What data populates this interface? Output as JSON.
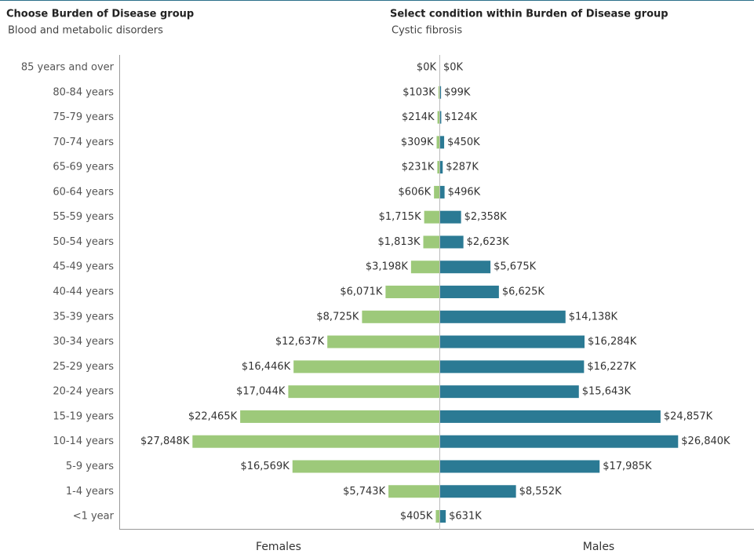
{
  "filters": [
    {
      "label": "Choose Burden of Disease group",
      "value": "Blood and metabolic disorders"
    },
    {
      "label": "Select condition within Burden of Disease group",
      "value": "Cystic fibrosis"
    }
  ],
  "chart_data": {
    "type": "pyramid",
    "categories": [
      "85 years and over",
      "80-84 years",
      "75-79 years",
      "70-74 years",
      "65-69 years",
      "60-64 years",
      "55-59 years",
      "50-54 years",
      "45-49 years",
      "40-44 years",
      "35-39 years",
      "30-34 years",
      "25-29 years",
      "20-24 years",
      "15-19 years",
      "10-14 years",
      "5-9 years",
      "1-4 years",
      "<1 year"
    ],
    "series": [
      {
        "name": "Females",
        "color": "#9dc97a",
        "values": [
          0,
          103,
          214,
          309,
          231,
          606,
          1715,
          1813,
          3198,
          6071,
          8725,
          12637,
          16446,
          17044,
          22465,
          27848,
          16569,
          5743,
          405
        ],
        "value_labels": [
          "$0K",
          "$103K",
          "$214K",
          "$309K",
          "$231K",
          "$606K",
          "$1,715K",
          "$1,813K",
          "$3,198K",
          "$6,071K",
          "$8,725K",
          "$12,637K",
          "$16,446K",
          "$17,044K",
          "$22,465K",
          "$27,848K",
          "$16,569K",
          "$5,743K",
          "$405K"
        ]
      },
      {
        "name": "Males",
        "color": "#2b7a94",
        "values": [
          0,
          99,
          124,
          450,
          287,
          496,
          2358,
          2623,
          5675,
          6625,
          14138,
          16284,
          16227,
          15643,
          24857,
          26840,
          17985,
          8552,
          631
        ],
        "value_labels": [
          "$0K",
          "$99K",
          "$124K",
          "$450K",
          "$287K",
          "$496K",
          "$2,358K",
          "$2,623K",
          "$5,675K",
          "$6,625K",
          "$14,138K",
          "$16,284K",
          "$16,227K",
          "$15,643K",
          "$24,857K",
          "$26,840K",
          "$17,985K",
          "$8,552K",
          "$631K"
        ]
      }
    ]
  }
}
